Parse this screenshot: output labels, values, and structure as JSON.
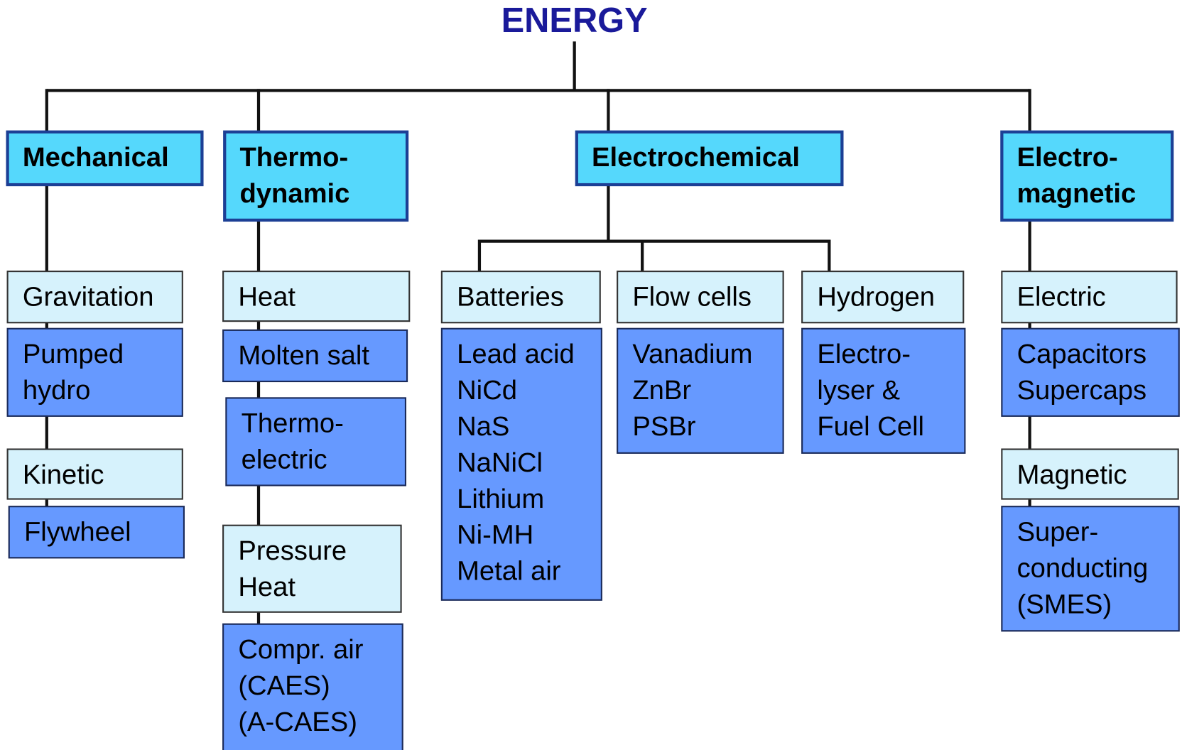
{
  "title": "ENERGY",
  "nodes": [
    {
      "label": [
        "Mechanical"
      ]
    },
    {
      "label": [
        "Thermo-",
        "dynamic"
      ]
    },
    {
      "label": [
        "Electrochemical"
      ]
    },
    {
      "label": [
        "Electro-",
        "magnetic"
      ]
    },
    {
      "label": [
        "Gravitation"
      ]
    },
    {
      "label": [
        "Kinetic"
      ]
    },
    {
      "label": [
        "Heat"
      ]
    },
    {
      "label": [
        "Pressure",
        "Heat"
      ]
    },
    {
      "label": [
        "Batteries"
      ]
    },
    {
      "label": [
        "Flow cells"
      ]
    },
    {
      "label": [
        "Hydrogen"
      ]
    },
    {
      "label": [
        "Electric"
      ]
    },
    {
      "label": [
        "Magnetic"
      ]
    },
    {
      "label": [
        "Pumped",
        "hydro"
      ]
    },
    {
      "label": [
        "Flywheel"
      ]
    },
    {
      "label": [
        "Molten salt"
      ]
    },
    {
      "label": [
        "Thermo-",
        "electric"
      ]
    },
    {
      "label": [
        "Compr. air",
        "(CAES)",
        "(A-CAES)"
      ]
    },
    {
      "label": [
        "Lead acid",
        "NiCd",
        "NaS",
        "NaNiCl",
        "Lithium",
        "Ni-MH",
        "Metal air"
      ]
    },
    {
      "label": [
        "Vanadium",
        "ZnBr",
        "PSBr"
      ]
    },
    {
      "label": [
        "Electro-",
        "lyser &",
        "Fuel Cell"
      ]
    },
    {
      "label": [
        "Capacitors",
        "Supercaps"
      ]
    },
    {
      "label": [
        "Super-",
        "conducting",
        "(SMES)"
      ]
    }
  ]
}
